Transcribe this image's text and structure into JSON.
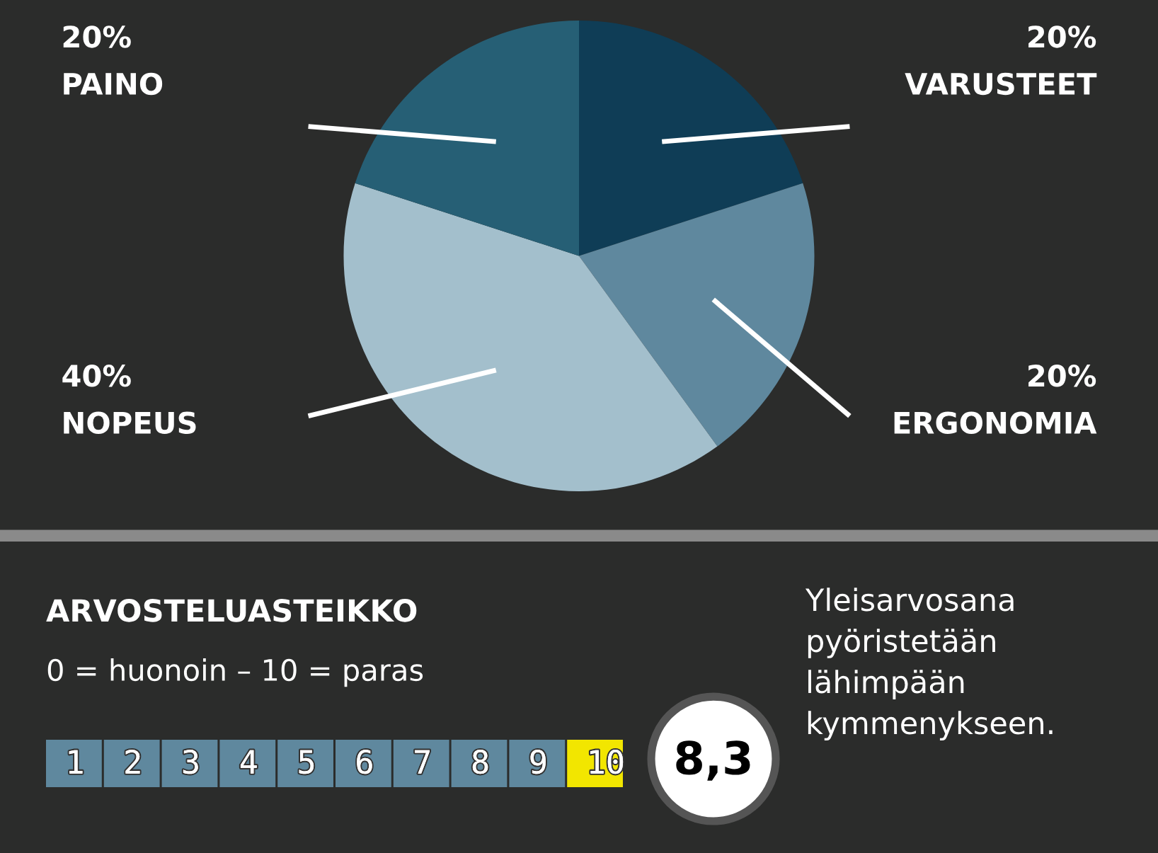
{
  "chart_data": [
    {
      "type": "pie",
      "categories": [
        "VARUSTEET",
        "ERGONOMIA",
        "NOPEUS",
        "PAINO"
      ],
      "values": [
        20,
        20,
        40,
        20
      ],
      "colors": [
        "#0f3d56",
        "#5f889e",
        "#a3bfcc",
        "#265f75"
      ],
      "value_labels": [
        "20%",
        "20%",
        "40%",
        "20%"
      ]
    },
    {
      "type": "other",
      "title": "ARVOSTELUASTEIKKO",
      "subtitle": "0 = huonoin – 10 = paras",
      "colors": [
        "#5f889e",
        "#5f889e",
        "#5f889e",
        "#5f889e",
        "#5f889e",
        "#5f889e",
        "#5f889e",
        "#5f889e",
        "#5f889e",
        "#f2e600"
      ],
      "annotations": [
        "1 2 3 4 5 6 7 8 9 10",
        "8,3",
        "Yleisarvosana\npyöristetään\nlähimpään\nkymmenykseen."
      ]
    }
  ]
}
